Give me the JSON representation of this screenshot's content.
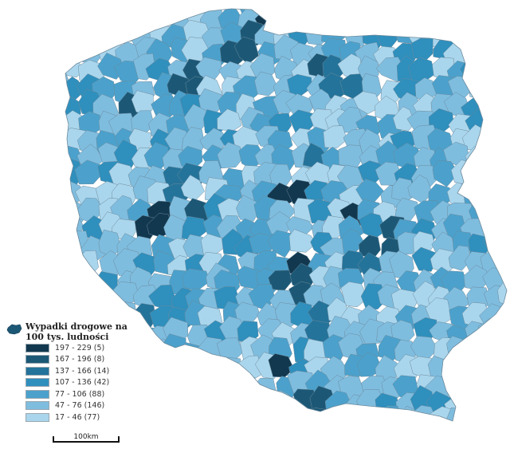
{
  "legend": {
    "title": "Wypadki drogowe na 100 tys. ludności",
    "items": [
      {
        "label": "197 - 229 (5)",
        "color": "#12384f"
      },
      {
        "label": "167 - 196 (8)",
        "color": "#1c5876"
      },
      {
        "label": "137 - 166 (14)",
        "color": "#24739a"
      },
      {
        "label": "107 - 136 (42)",
        "color": "#2f8fbd"
      },
      {
        "label": "77 - 106 (88)",
        "color": "#4ba1cc"
      },
      {
        "label": "47 - 76 (146)",
        "color": "#7fbddf"
      },
      {
        "label": "17 - 46 (77)",
        "color": "#aad6ed"
      }
    ]
  },
  "scale": {
    "label": "100km"
  },
  "colors": {
    "border": "#6b8a9c",
    "background": "#ffffff"
  }
}
